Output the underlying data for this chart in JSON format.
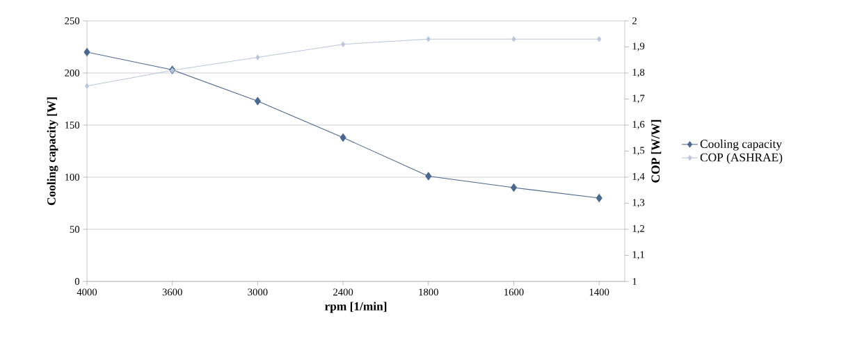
{
  "chart_data": {
    "type": "line",
    "xlabel": "rpm [1/min]",
    "ylabel": "Cooling capacity [W]",
    "y2label": "COP [W/W]",
    "categories": [
      "4000",
      "3600",
      "3000",
      "2400",
      "1800",
      "1600",
      "1400"
    ],
    "series": [
      {
        "name": "Cooling capacity",
        "color": "#4a6890",
        "values": [
          220,
          203,
          173,
          138,
          101,
          90,
          80
        ]
      },
      {
        "name": "COP (ASHRAE)",
        "color": "#b9c6dc",
        "axis": "y2",
        "values": [
          1.75,
          1.81,
          1.86,
          1.91,
          1.93,
          1.93,
          1.93
        ]
      }
    ],
    "ylim": [
      0,
      250
    ],
    "yticks": [
      0,
      50,
      100,
      150,
      200,
      250
    ],
    "y2lim": [
      1,
      2
    ],
    "y2ticks": [
      1,
      {
        "value": 1.1,
        "label": "1,1"
      },
      {
        "value": 1.2,
        "label": "1,2"
      },
      {
        "value": 1.3,
        "label": "1,3"
      },
      {
        "value": 1.4,
        "label": "1,4"
      },
      {
        "value": 1.5,
        "label": "1,5"
      },
      {
        "value": 1.6,
        "label": "1,6"
      },
      {
        "value": 1.7,
        "label": "1,7"
      },
      {
        "value": 1.8,
        "label": "1,8"
      },
      {
        "value": 1.9,
        "label": "1,9"
      },
      2
    ],
    "grid": "y",
    "legend": "right",
    "marker": "diamond",
    "line_style": "solid"
  }
}
